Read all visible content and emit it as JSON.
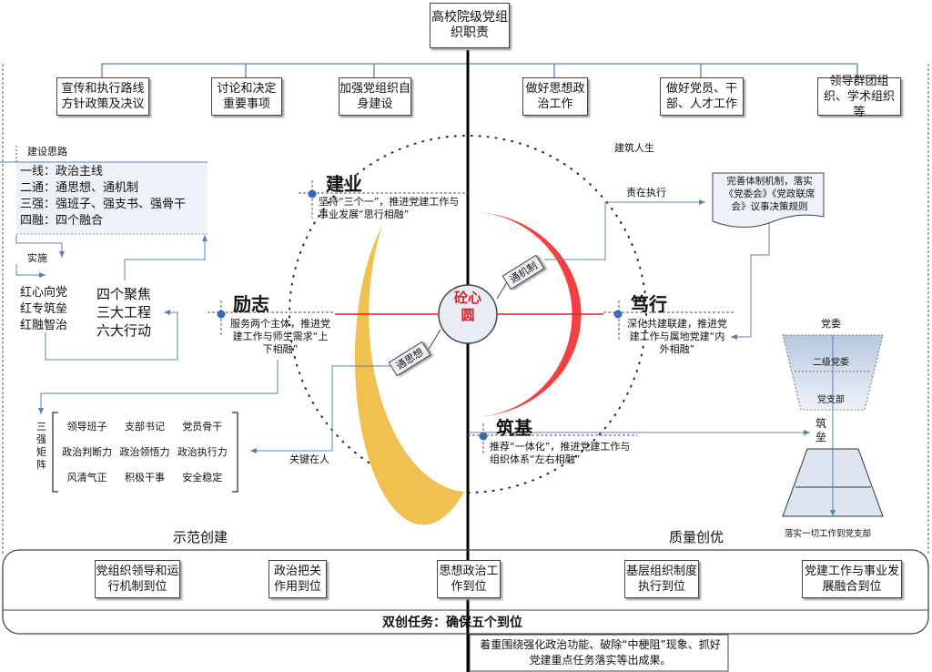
{
  "title": "高校院级党组织职责",
  "duties": [
    "宣传和执行路线方针政策及决议",
    "讨论和决定重要事项",
    "加强党组织自身建设",
    "做好思想政治工作",
    "做好党员、干部、人才工作",
    "领导群团组织、学术组织等"
  ],
  "ideas": {
    "heading": "建设思路",
    "lines": [
      "一线：政治主线",
      "二通：通思想、通机制",
      "三强：强班子、强支书、强骨干",
      "四融：四个融合"
    ]
  },
  "implement": "实施",
  "red_list": [
    "红心向党",
    "红专筑垒",
    "红融智治"
  ],
  "focus_list": [
    "四个聚焦",
    "三大工程",
    "六大行动"
  ],
  "matrix": {
    "label": "三强矩阵",
    "cells": [
      "领导班子",
      "支部书记",
      "党员骨干",
      "政治判断力",
      "政治领悟力",
      "政治执行力",
      "风清气正",
      "积极干事",
      "安全稳定"
    ]
  },
  "center": "砼心圆",
  "tong_sixiang": "通思想",
  "tong_jizhi": "通机制",
  "life": "建筑人生",
  "sections": {
    "jianye": {
      "title": "建业",
      "text": "坚持“三个一”，推进党建工作与事业发展“思行相融”"
    },
    "lizhi": {
      "title": "励志",
      "text": "服务两个主体，推进党建工作与师生需求“上下相融”"
    },
    "duxing": {
      "title": "笃行",
      "text": "深化共建联建，推进党建工作与属地党建“内外相融”"
    },
    "zhuji": {
      "title": "筑基",
      "text": "推荐“一体化”，推进党建工作与组织体系“左右相融”"
    }
  },
  "zezai": "责在执行",
  "rules": "完善体制机制，落实《党委会》《党政联席会》议事决策规则",
  "key_people": "关键在人",
  "pyramid": {
    "top": "党委",
    "level2": "二级党委",
    "level3": "党支部",
    "fort": "筑垒",
    "bottom": "落实一切工作到党支部"
  },
  "demo": "示范创建",
  "quality": "质量创优",
  "tasks": [
    "党组织领导和运行机制到位",
    "政治把关作用到位",
    "思想政治工作到位",
    "基层组织制度执行到位",
    "党建工作与事业发展融合到位"
  ],
  "task_title": "双创任务：确保五个到位",
  "summary": "着重围绕强化政治功能、破除“中梗阻”现象、抓好党建重点任务落实等出成果。",
  "colors": {
    "line": "#5b7fb5",
    "yellow": "#f0c050",
    "red": "#f44040",
    "center": "#e8edf5"
  }
}
